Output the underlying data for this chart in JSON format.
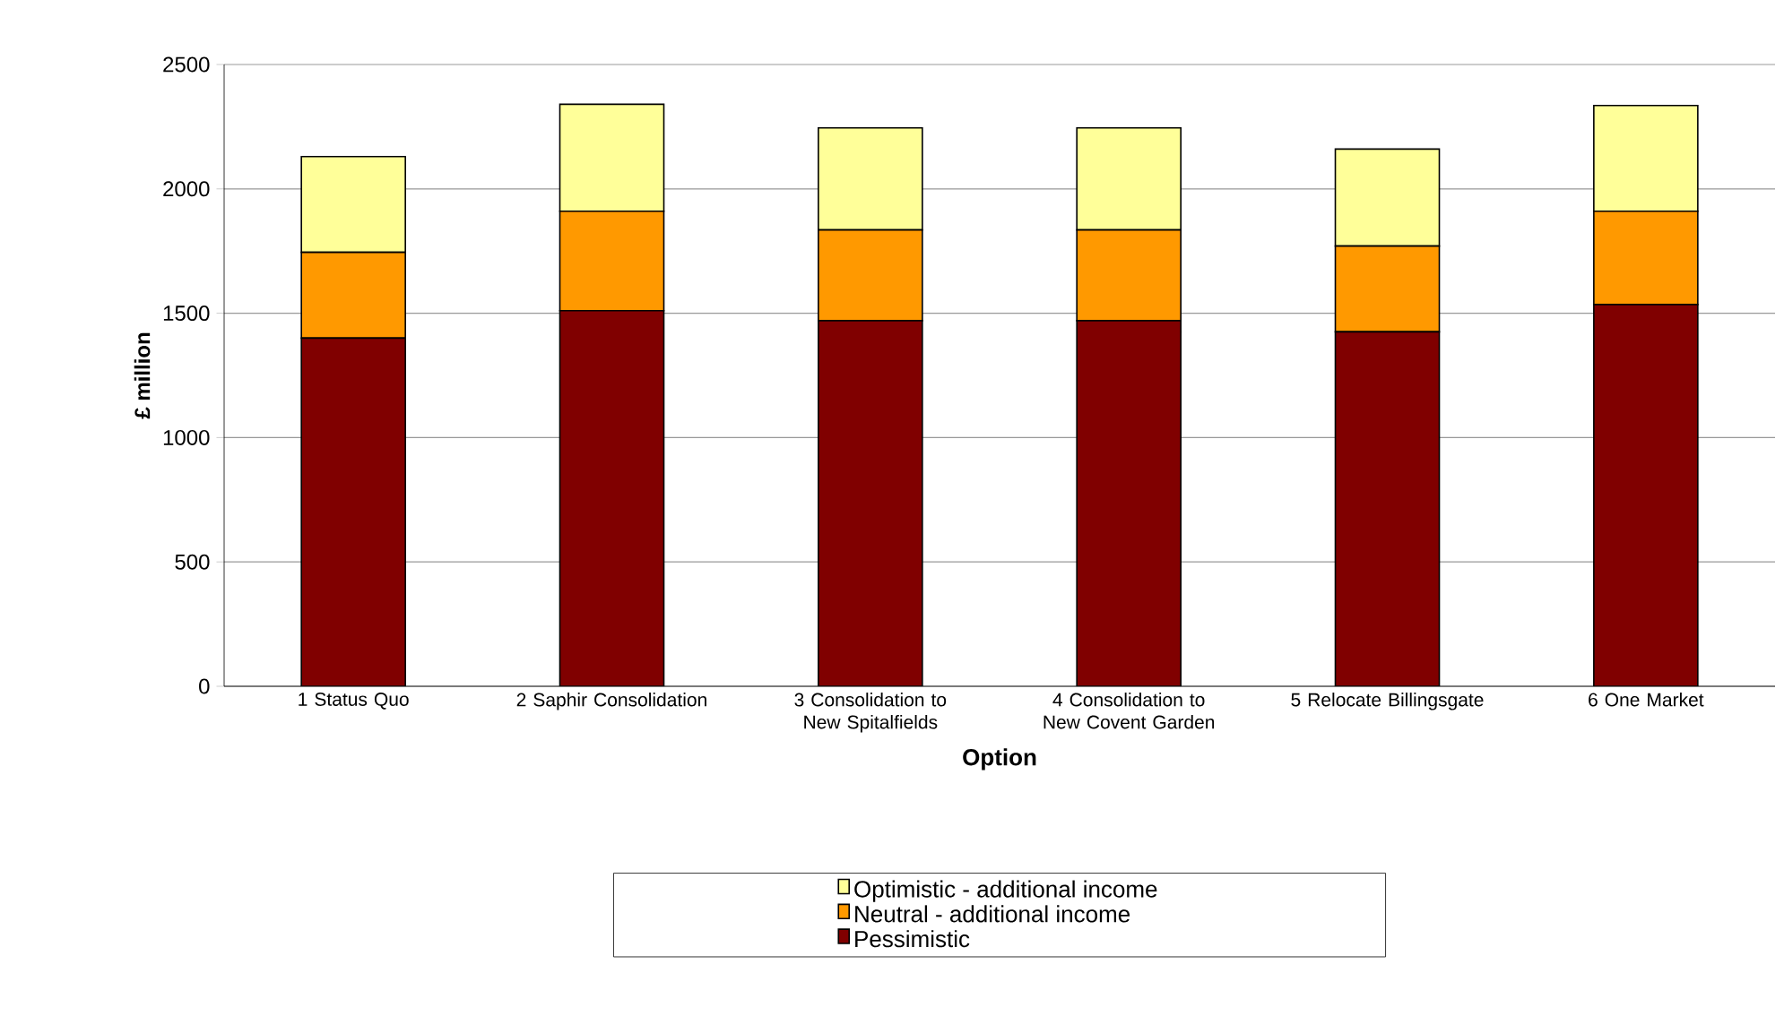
{
  "chart_data": {
    "type": "bar",
    "stacked": true,
    "xlabel": "Option",
    "ylabel": "£ million",
    "categories": [
      "1 Status Quo",
      "2 Saphir Consolidation",
      "3 Consolidation to New Spitalfields",
      "4 Consolidation to New  Covent Garden",
      "5 Relocate Billingsgate",
      "6 One Market"
    ],
    "series": [
      {
        "name": "Pessimistic",
        "color": "#800000",
        "values": [
          1400,
          1510,
          1470,
          1470,
          1425,
          1535
        ]
      },
      {
        "name": "Neutral - additional income",
        "color": "#ff9900",
        "values": [
          345,
          400,
          365,
          365,
          345,
          375
        ]
      },
      {
        "name": "Optimistic - additional income",
        "color": "#ffff99",
        "values": [
          385,
          430,
          410,
          410,
          390,
          425
        ]
      }
    ],
    "ylim": [
      0,
      2500
    ],
    "yticks": [
      0,
      500,
      1000,
      1500,
      2000,
      2500
    ],
    "grid": "y",
    "legend": "bottom"
  }
}
